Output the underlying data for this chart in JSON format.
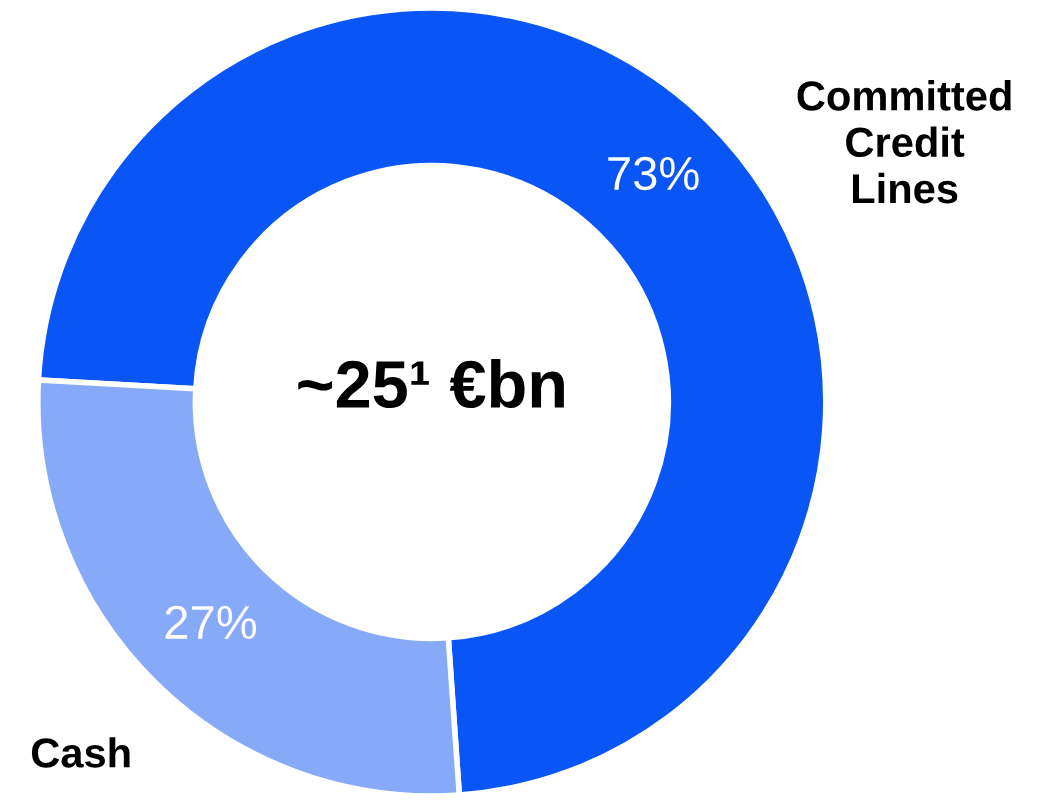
{
  "chart_data": {
    "type": "donut",
    "title": "~25¹ €bn",
    "categories": [
      "Committed\nCredit\nLines",
      "Cash"
    ],
    "values": [
      73,
      27
    ],
    "colors": [
      "#0a55f5",
      "#86aaf8"
    ],
    "value_labels": [
      "73%",
      "27%"
    ],
    "legend": false
  }
}
